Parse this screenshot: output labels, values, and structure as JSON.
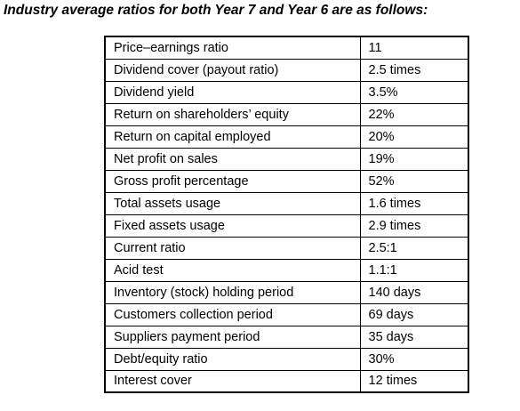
{
  "header": {
    "title": "Industry average ratios for both Year 7 and Year 6 are as follows:"
  },
  "table": {
    "rows": [
      [
        "Price–earnings ratio",
        "11"
      ],
      [
        "Dividend cover (payout ratio)",
        "2.5 times"
      ],
      [
        "Dividend yield",
        "3.5%"
      ],
      [
        "Return on shareholders’ equity",
        "22%"
      ],
      [
        "Return on capital employed",
        "20%"
      ],
      [
        "Net profit on sales",
        "19%"
      ],
      [
        "Gross profit percentage",
        "52%"
      ],
      [
        "Total assets usage",
        "1.6 times"
      ],
      [
        "Fixed assets usage",
        "2.9 times"
      ],
      [
        "Current ratio",
        "2.5:1"
      ],
      [
        "Acid test",
        "1.1:1"
      ],
      [
        "Inventory (stock) holding period",
        "140 days"
      ],
      [
        "Customers collection period",
        "69 days"
      ],
      [
        "Suppliers payment period",
        "35 days"
      ],
      [
        "Debt/equity ratio",
        "30%"
      ],
      [
        "Interest cover",
        "12 times"
      ]
    ]
  }
}
